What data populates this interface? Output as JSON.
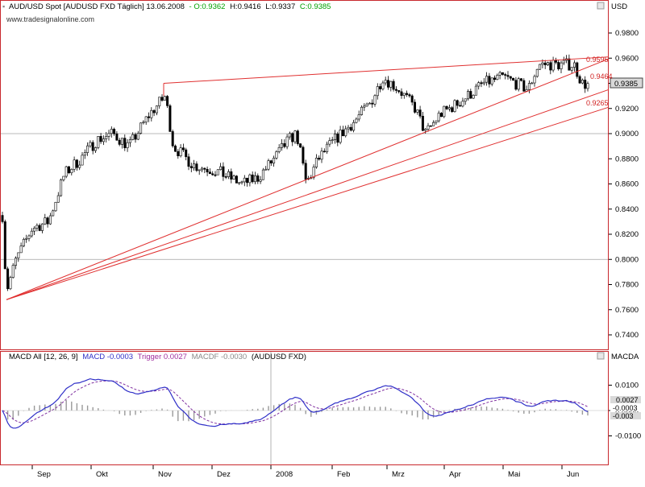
{
  "colors": {
    "frame": "#c8282d",
    "grid": "#a0a0a0",
    "up_candle": "#ffffff",
    "down_candle": "#000000",
    "trendline": "#e03030",
    "price_label_bg": "#d9d9d9",
    "macd_line": "#3030c8",
    "trigger_line": "#8030a0",
    "histogram": "#999999",
    "header_green": "#00a000"
  },
  "header": {
    "instrument": "AUD/USD Spot [AUDUSD FXD  Täglich] 13.06.2008",
    "open": "- O:0.9362",
    "high": "H:0.9416",
    "low": "L:0.9337",
    "close": "C:0.9385"
  },
  "watermark": "www.tradesignalonline.com",
  "price_panel": {
    "unit": "USD",
    "last_price_label": "0.9385",
    "ticks": [
      "0.9800",
      "0.9600",
      "0.9400",
      "0.9200",
      "0.9000",
      "0.8800",
      "0.8600",
      "0.8400",
      "0.8200",
      "0.8000",
      "0.7800",
      "0.7600",
      "0.7400"
    ]
  },
  "indicator": {
    "header_prefix": "MACD All [12, 26, 9]",
    "macd_label": "MACD -0.0003",
    "trigger_label": "Trigger 0.0027",
    "macdf_label": "MACDF -0.0030",
    "suffix": "(AUDUSD FXD)",
    "panel_title": "MACDA",
    "ticks": [
      "0.0100",
      "0.0000",
      "-0.0100"
    ],
    "value_labels": [
      "0.0027",
      "-0.0003",
      "-0.003"
    ]
  },
  "x_axis": {
    "labels": [
      "Sep",
      "Okt",
      "Nov",
      "Dez",
      "2008",
      "Feb",
      "Mrz",
      "Apr",
      "Mai",
      "Jun"
    ]
  },
  "chart_data": [
    {
      "type": "candlestick",
      "title": "AUD/USD Spot [AUDUSD FXD  Täglich] 13.06.2008",
      "ylabel": "USD",
      "ylim": [
        0.73,
        0.998
      ],
      "categories": [
        "Sep",
        "Okt",
        "Nov",
        "Dez",
        "2008",
        "Feb",
        "Mrz",
        "Apr",
        "Mai",
        "Jun"
      ],
      "last": {
        "open": 0.9362,
        "high": 0.9416,
        "low": 0.9337,
        "close": 0.9385
      },
      "trendline_levels": [
        0.9595,
        0.9464,
        0.9265
      ],
      "grid": true
    },
    {
      "type": "line",
      "title": "MACD All [12, 26, 9]",
      "ylim": [
        -0.019,
        0.019
      ],
      "categories": [
        "Sep",
        "Okt",
        "Nov",
        "Dez",
        "2008",
        "Feb",
        "Mrz",
        "Apr",
        "Mai",
        "Jun"
      ],
      "series": [
        {
          "name": "MACD",
          "last": -0.0003
        },
        {
          "name": "Trigger",
          "last": 0.0027
        },
        {
          "name": "MACDF",
          "last": -0.003
        }
      ]
    }
  ]
}
